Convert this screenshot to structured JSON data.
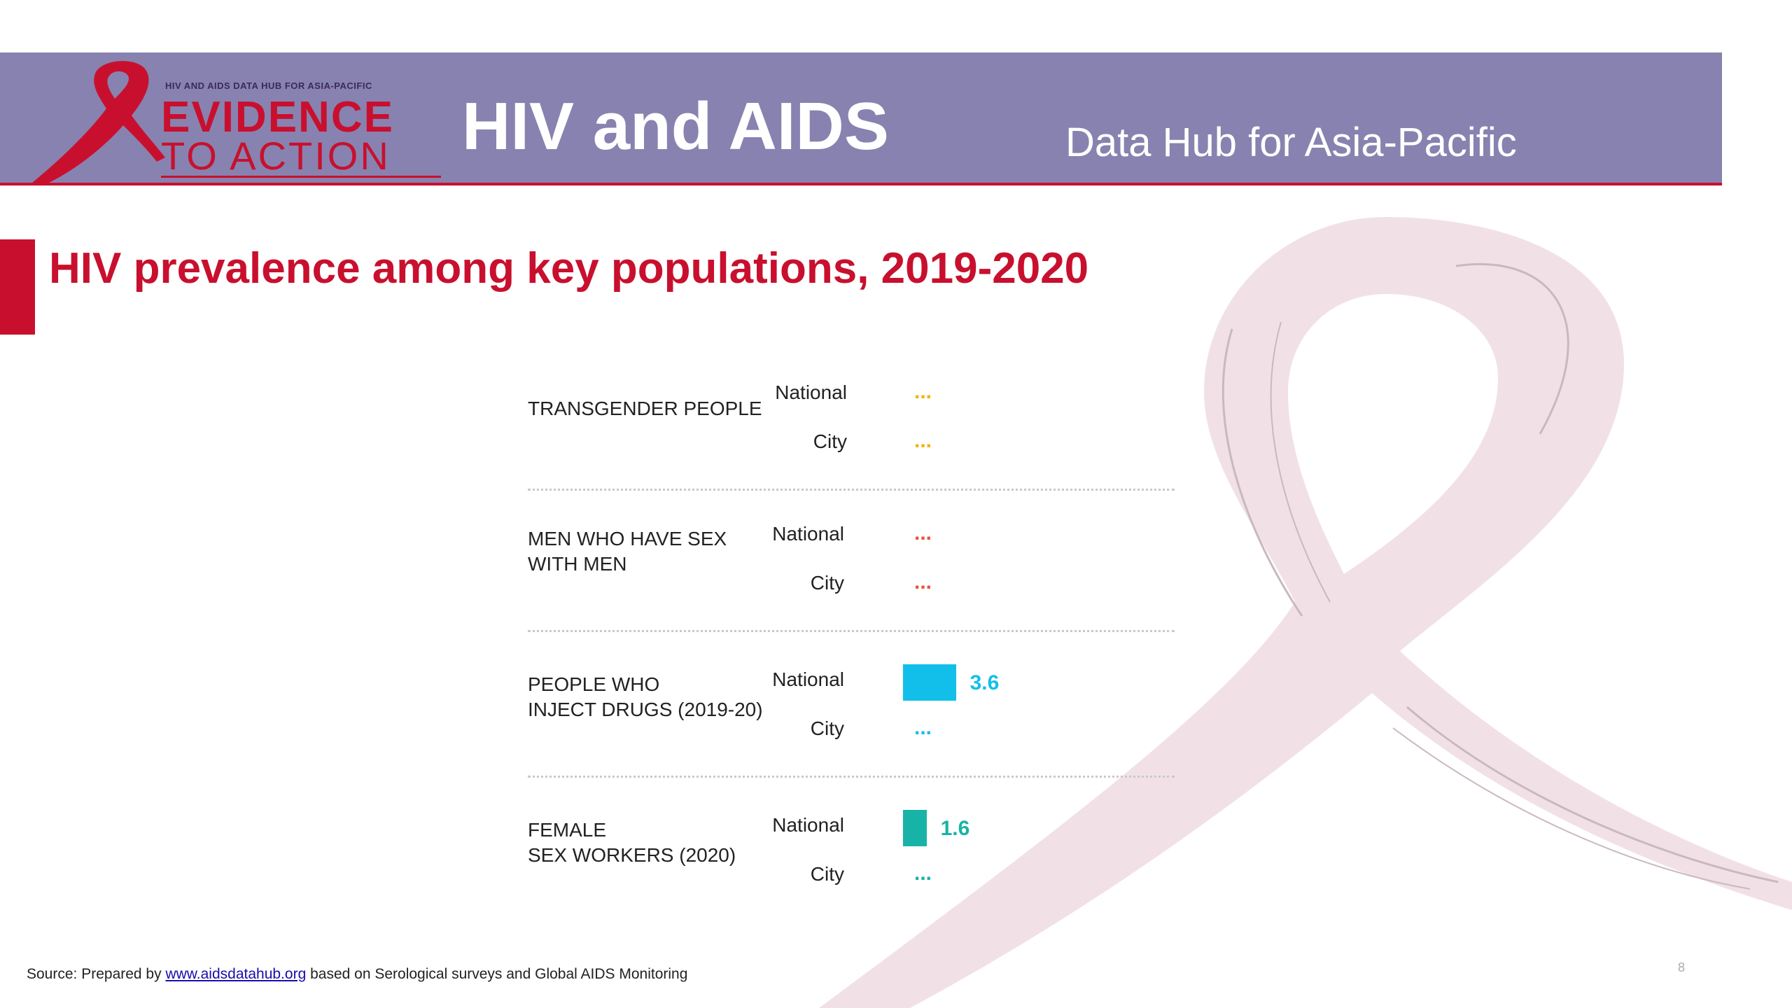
{
  "header": {
    "logo_tagline": "HIV AND AIDS DATA HUB FOR ASIA-PACIFIC",
    "logo_line1": "EVIDENCE",
    "logo_line2": "TO ACTION",
    "title": "HIV and AIDS",
    "subtitle": "Data Hub for Asia-Pacific"
  },
  "colors": {
    "header_band": "#8882b0",
    "brand_red": "#c8102e",
    "watermark": "#f1e1e7"
  },
  "chart_data": {
    "type": "bar",
    "title": "HIV prevalence among key populations, 2019-2020",
    "orientation": "horizontal",
    "xlim": [
      0,
      100
    ],
    "missing_symbol": "...",
    "groups": [
      {
        "label_lines": [
          "TRANSGENDER PEOPLE"
        ],
        "color": "#f0b400",
        "levels": [
          {
            "name": "National",
            "value": null,
            "display": "..."
          },
          {
            "name": "City",
            "value": null,
            "display": "..."
          }
        ]
      },
      {
        "label_lines": [
          "MEN WHO HAVE SEX",
          "WITH MEN"
        ],
        "color": "#e8543a",
        "levels": [
          {
            "name": "National",
            "value": null,
            "display": "..."
          },
          {
            "name": "City",
            "value": null,
            "display": "..."
          }
        ]
      },
      {
        "label_lines": [
          "PEOPLE WHO",
          "INJECT DRUGS (2019-20)"
        ],
        "color": "#12bfea",
        "levels": [
          {
            "name": "National",
            "value": 3.6,
            "display": "3.6"
          },
          {
            "name": "City",
            "value": null,
            "display": "..."
          }
        ]
      },
      {
        "label_lines": [
          "FEMALE",
          "SEX WORKERS (2020)"
        ],
        "color": "#17b3a6",
        "levels": [
          {
            "name": "National",
            "value": 1.6,
            "display": "1.6"
          },
          {
            "name": "City",
            "value": null,
            "display": "..."
          }
        ]
      }
    ]
  },
  "footer": {
    "source_prefix": "Source: Prepared by",
    "source_link": "www.aidsdatahub.org",
    "source_suffix": "based on Serological surveys and Global AIDS Monitoring",
    "page_number": "8"
  }
}
